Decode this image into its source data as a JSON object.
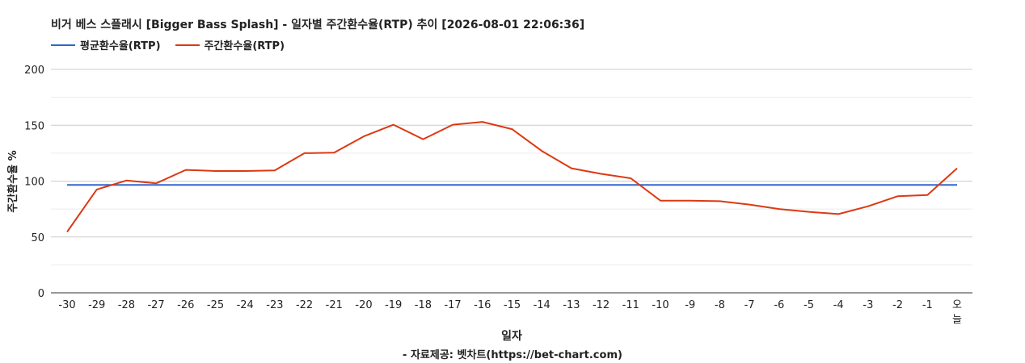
{
  "title": "비거 베스 스플래시 [Bigger Bass Splash] - 일자별 주간환수율(RTP) 추이 [2026-08-01 22:06:36]",
  "source": "- 자료제공: 벳차트(https://bet-chart.com)",
  "chart_data": {
    "type": "line",
    "xlabel": "일자",
    "ylabel": "주간환수율 %",
    "ylim": [
      0,
      200
    ],
    "yticks": [
      0,
      50,
      100,
      150,
      200
    ],
    "grid": true,
    "legend_position": "top-left",
    "categories": [
      "-30",
      "-29",
      "-28",
      "-27",
      "-26",
      "-25",
      "-24",
      "-23",
      "-22",
      "-21",
      "-20",
      "-19",
      "-18",
      "-17",
      "-16",
      "-15",
      "-14",
      "-13",
      "-12",
      "-11",
      "-10",
      "-9",
      "-8",
      "-7",
      "-6",
      "-5",
      "-4",
      "-3",
      "-2",
      "-1",
      "오늘"
    ],
    "series": [
      {
        "name": "평균환수율(RTP)",
        "color": "#3366cc",
        "values": [
          96.5,
          96.5,
          96.5,
          96.5,
          96.5,
          96.5,
          96.5,
          96.5,
          96.5,
          96.5,
          96.5,
          96.5,
          96.5,
          96.5,
          96.5,
          96.5,
          96.5,
          96.5,
          96.5,
          96.5,
          96.5,
          96.5,
          96.5,
          96.5,
          96.5,
          96.5,
          96.5,
          96.5,
          96.5,
          96.5,
          96.5
        ]
      },
      {
        "name": "주간환수율(RTP)",
        "color": "#dc3912",
        "values": [
          54.5,
          92.5,
          100.5,
          98,
          110,
          109,
          109,
          109.5,
          125,
          125.5,
          140,
          150.5,
          137.5,
          150.5,
          153,
          146.5,
          127,
          111.5,
          106.5,
          102.5,
          82.5,
          82.5,
          82,
          79,
          75,
          72.5,
          70.5,
          77.5,
          86.5,
          87.5,
          111.5
        ]
      }
    ]
  }
}
